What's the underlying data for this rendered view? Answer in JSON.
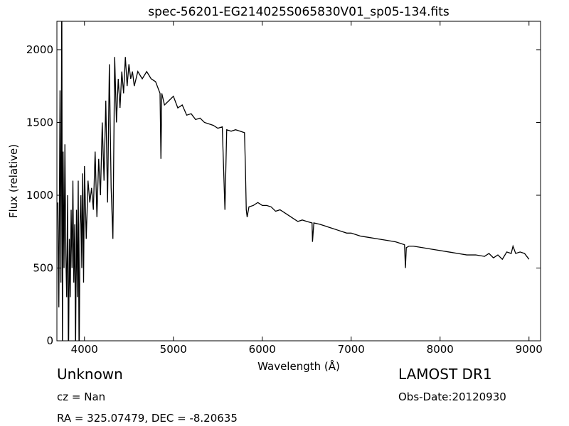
{
  "chart_data": {
    "type": "line",
    "title": "spec-56201-EG214025S065830V01_sp05-134.fits",
    "xlabel": "Wavelength (Å)",
    "ylabel": "Flux (relative)",
    "annotations": [
      "Unknown",
      "cz = Nan",
      "RA = 325.07479, DEC = -8.20635",
      "LAMOST DR1",
      "Obs-Date:20120930"
    ],
    "color": "#000000",
    "xlim": [
      3690,
      9130
    ],
    "ylim": [
      0,
      2195
    ],
    "xticks": [
      4000,
      5000,
      6000,
      7000,
      8000,
      9000
    ],
    "yticks": [
      0,
      500,
      1000,
      1500,
      2000
    ],
    "x": [
      3700,
      3712,
      3725,
      3735,
      3745,
      3752,
      3760,
      3770,
      3780,
      3790,
      3800,
      3810,
      3820,
      3830,
      3840,
      3850,
      3860,
      3870,
      3880,
      3890,
      3900,
      3910,
      3920,
      3930,
      3940,
      3950,
      3960,
      3970,
      3980,
      3990,
      4000,
      4020,
      4040,
      4060,
      4080,
      4100,
      4120,
      4140,
      4160,
      4180,
      4200,
      4220,
      4240,
      4260,
      4280,
      4300,
      4320,
      4340,
      4360,
      4380,
      4400,
      4420,
      4440,
      4460,
      4480,
      4500,
      4520,
      4540,
      4560,
      4600,
      4650,
      4700,
      4750,
      4800,
      4850,
      4860,
      4870,
      4900,
      4950,
      5000,
      5050,
      5100,
      5150,
      5200,
      5250,
      5300,
      5350,
      5400,
      5450,
      5500,
      5550,
      5580,
      5600,
      5650,
      5700,
      5750,
      5800,
      5810,
      5820,
      5830,
      5850,
      5900,
      5950,
      6000,
      6050,
      6100,
      6150,
      6200,
      6250,
      6300,
      6350,
      6400,
      6450,
      6500,
      6560,
      6565,
      6580,
      6650,
      6700,
      6750,
      6800,
      6850,
      6900,
      6950,
      7000,
      7100,
      7200,
      7300,
      7400,
      7500,
      7550,
      7600,
      7610,
      7620,
      7650,
      7700,
      7800,
      7900,
      8000,
      8100,
      8200,
      8300,
      8400,
      8500,
      8550,
      8600,
      8650,
      8700,
      8750,
      8800,
      8820,
      8850,
      8900,
      8950,
      9000
    ],
    "values": [
      950,
      230,
      1720,
      400,
      2500,
      -100,
      1300,
      500,
      1350,
      600,
      300,
      1000,
      -200,
      700,
      300,
      900,
      500,
      1100,
      400,
      800,
      -100,
      900,
      300,
      1100,
      -200,
      800,
      1000,
      500,
      1150,
      400,
      1200,
      700,
      1100,
      950,
      1050,
      900,
      1300,
      850,
      1250,
      1000,
      1500,
      1100,
      1650,
      950,
      1900,
      1050,
      700,
      1950,
      1500,
      1800,
      1600,
      1850,
      1700,
      1950,
      1750,
      1900,
      1800,
      1850,
      1750,
      1850,
      1800,
      1850,
      1800,
      1780,
      1700,
      1250,
      1700,
      1620,
      1650,
      1680,
      1600,
      1620,
      1550,
      1560,
      1520,
      1530,
      1500,
      1490,
      1480,
      1460,
      1470,
      900,
      1450,
      1440,
      1450,
      1440,
      1430,
      1200,
      900,
      850,
      920,
      930,
      950,
      930,
      930,
      920,
      890,
      900,
      880,
      860,
      840,
      820,
      830,
      820,
      810,
      680,
      810,
      800,
      790,
      780,
      770,
      760,
      750,
      740,
      740,
      720,
      710,
      700,
      690,
      680,
      670,
      660,
      500,
      640,
      650,
      650,
      640,
      630,
      620,
      610,
      600,
      590,
      590,
      580,
      600,
      570,
      590,
      560,
      610,
      600,
      650,
      600,
      610,
      600,
      560
    ]
  }
}
